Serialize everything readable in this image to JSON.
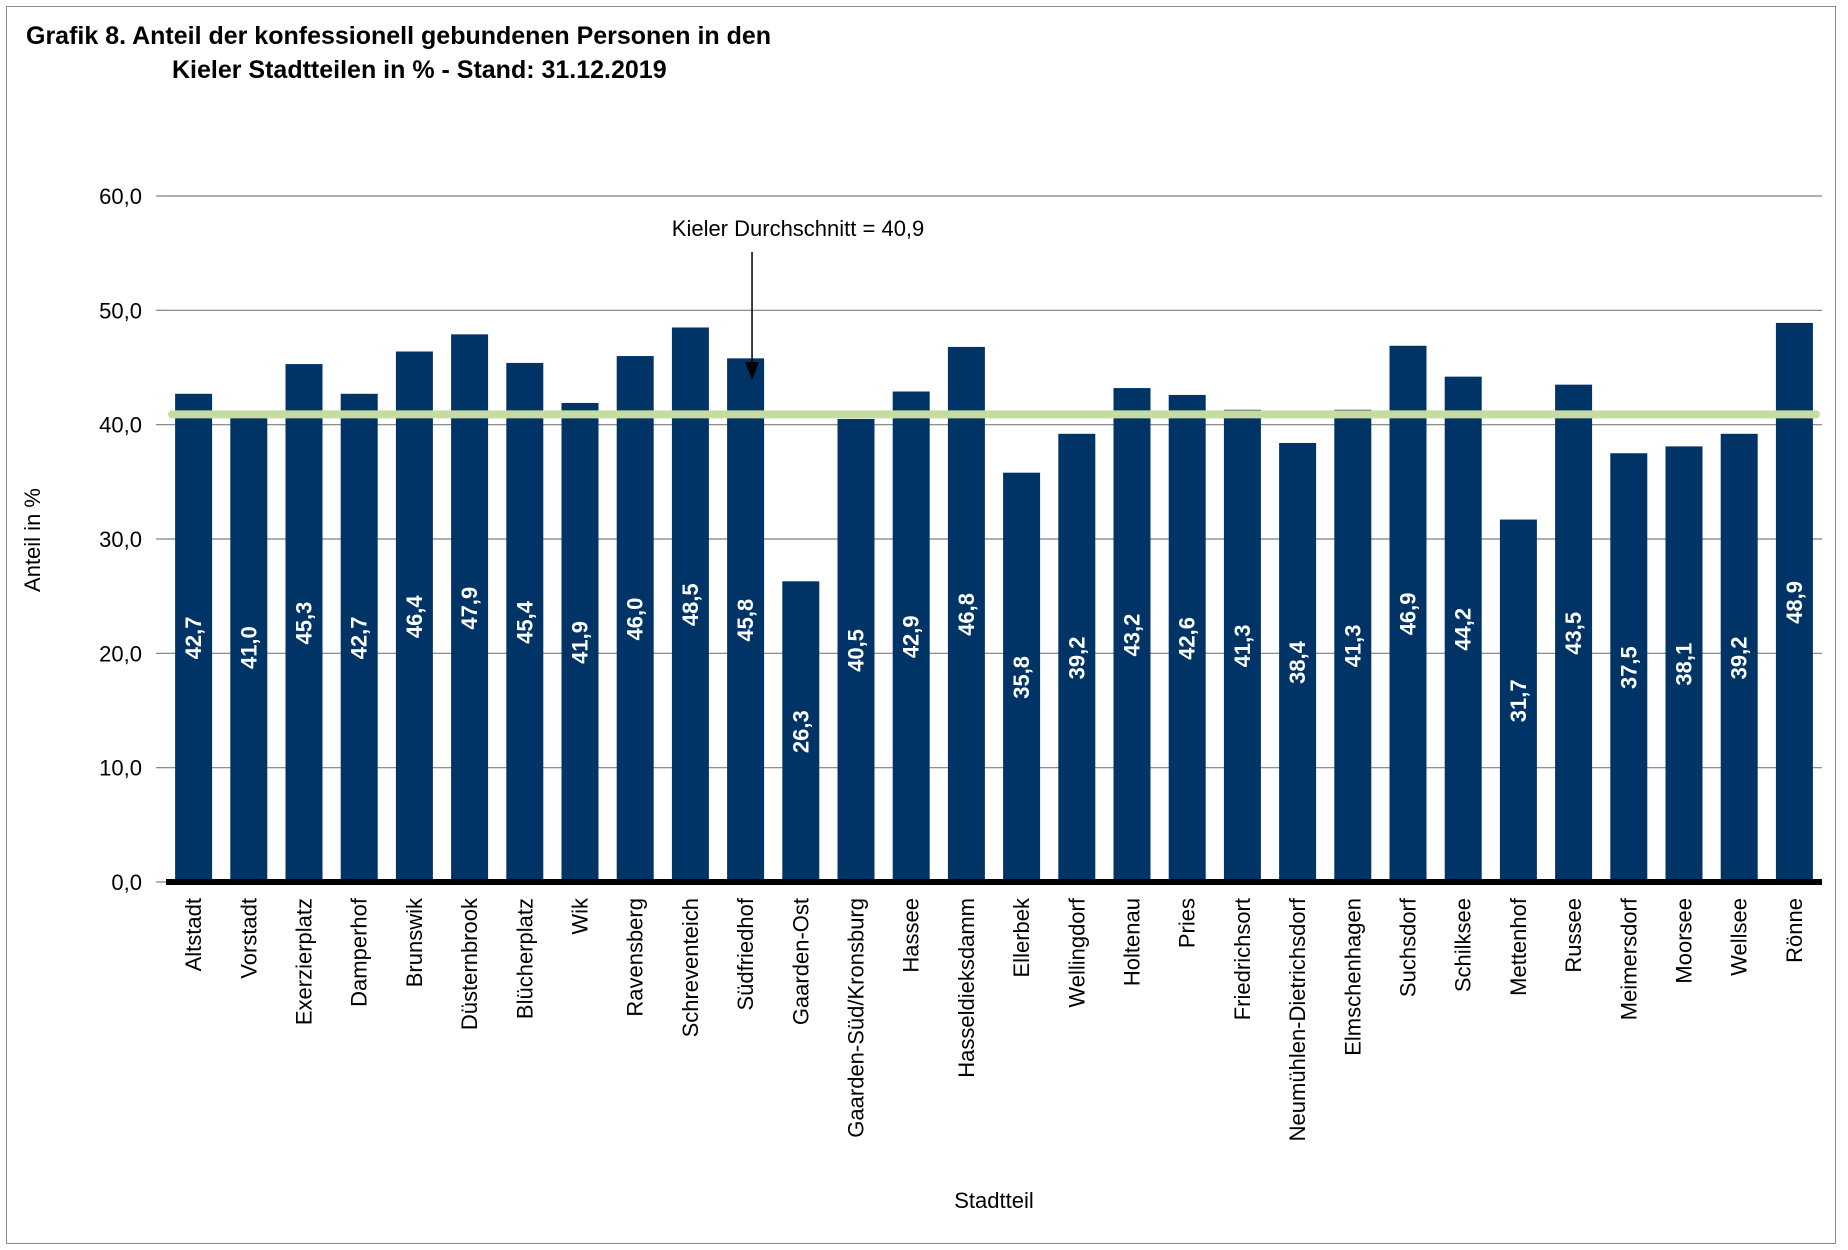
{
  "title_line1": "Grafik 8.  Anteil der konfessionell gebundenen Personen in den",
  "title_line2": "Kieler Stadtteilen in % - Stand: 31.12.2019",
  "chart_data": {
    "type": "bar",
    "title": "Grafik 8.  Anteil der konfessionell gebundenen Personen in den Kieler Stadtteilen in % - Stand: 31.12.2019",
    "xlabel": "Stadtteil",
    "ylabel": "Anteil in %",
    "ylim": [
      0,
      60
    ],
    "yticks": [
      0,
      10,
      20,
      30,
      40,
      50,
      60
    ],
    "ytick_labels": [
      "0,0",
      "10,0",
      "20,0",
      "30,0",
      "40,0",
      "50,0",
      "60,0"
    ],
    "grid": true,
    "bar_color": "#003366",
    "reference_line": {
      "value": 40.9,
      "label": "Kieler Durchschnitt = 40,9",
      "color": "#c5dca0"
    },
    "categories": [
      "Altstadt",
      "Vorstadt",
      "Exerzierplatz",
      "Damperhof",
      "Brunswik",
      "Düsternbrook",
      "Blücherplatz",
      "Wik",
      "Ravensberg",
      "Schreventeich",
      "Südfriedhof",
      "Gaarden-Ost",
      "Gaarden-Süd/Kronsburg",
      "Hassee",
      "Hasseldieksdamm",
      "Ellerbek",
      "Wellingdorf",
      "Holtenau",
      "Pries",
      "Friedrichsort",
      "Neumühlen-Dietrichsdorf",
      "Elmschenhagen",
      "Suchsdorf",
      "Schilksee",
      "Mettenhof",
      "Russee",
      "Meimersdorf",
      "Moorsee",
      "Wellsee",
      "Rönne"
    ],
    "values": [
      42.7,
      41.0,
      45.3,
      42.7,
      46.4,
      47.9,
      45.4,
      41.9,
      46.0,
      48.5,
      45.8,
      26.3,
      40.5,
      42.9,
      46.8,
      35.8,
      39.2,
      43.2,
      42.6,
      41.3,
      38.4,
      41.3,
      46.9,
      44.2,
      31.7,
      43.5,
      37.5,
      38.1,
      39.2,
      48.9
    ],
    "value_labels": [
      "42,7",
      "41,0",
      "45,3",
      "42,7",
      "46,4",
      "47,9",
      "45,4",
      "41,9",
      "46,0",
      "48,5",
      "45,8",
      "26,3",
      "40,5",
      "42,9",
      "46,8",
      "35,8",
      "39,2",
      "43,2",
      "42,6",
      "41,3",
      "38,4",
      "41,3",
      "46,9",
      "44,2",
      "31,7",
      "43,5",
      "37,5",
      "38,1",
      "39,2",
      "48,9"
    ]
  }
}
